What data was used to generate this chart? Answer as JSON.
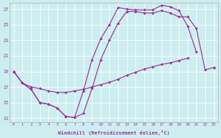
{
  "xlabel": "Windchill (Refroidissement éolien,°C)",
  "xlim": [
    -0.5,
    23.5
  ],
  "ylim": [
    12.5,
    27.8
  ],
  "xticks": [
    0,
    1,
    2,
    3,
    4,
    5,
    6,
    7,
    8,
    9,
    10,
    11,
    12,
    13,
    14,
    15,
    16,
    17,
    18,
    19,
    20,
    21,
    22,
    23
  ],
  "yticks": [
    13,
    15,
    17,
    19,
    21,
    23,
    25,
    27
  ],
  "bg_color": "#cdeef0",
  "line_color": "#993399",
  "curve1_x": [
    0,
    1,
    2,
    3,
    4,
    5,
    6,
    7,
    8,
    9,
    10,
    11,
    12,
    13,
    14,
    15,
    16,
    17,
    18,
    19,
    20,
    21,
    22
  ],
  "curve1_y": [
    19,
    17.5,
    16.7,
    15.0,
    14.8,
    14.3,
    13.2,
    13.1,
    16.5,
    20.5,
    23.2,
    25.0,
    27.2,
    27.0,
    26.9,
    26.9,
    26.9,
    27.5,
    27.3,
    26.8,
    24.8,
    21.5,
    null
  ],
  "curve2_x": [
    0,
    1,
    2,
    3,
    4,
    5,
    6,
    7,
    8,
    9,
    10,
    11,
    12,
    13,
    14,
    15,
    16,
    17,
    18,
    19,
    20,
    21,
    22,
    23
  ],
  "curve2_y": [
    19,
    17.5,
    16.7,
    15.0,
    14.8,
    14.3,
    13.2,
    13.1,
    13.6,
    16.8,
    20.5,
    23.0,
    25.2,
    26.7,
    26.7,
    26.5,
    26.5,
    26.8,
    26.5,
    26.0,
    26.0,
    24.5,
    19.2,
    19.5
  ],
  "curve3_x": [
    0,
    1,
    2,
    3,
    4,
    5,
    6,
    7,
    8,
    9,
    10,
    11,
    12,
    13,
    14,
    15,
    16,
    17,
    18,
    19,
    20,
    21,
    22,
    23
  ],
  "curve3_y": [
    19,
    17.5,
    17.0,
    16.8,
    16.5,
    16.3,
    16.3,
    16.5,
    16.7,
    17.0,
    17.3,
    17.6,
    18.0,
    18.5,
    18.9,
    19.3,
    19.6,
    19.9,
    20.1,
    20.4,
    20.7,
    null,
    null,
    19.5
  ]
}
